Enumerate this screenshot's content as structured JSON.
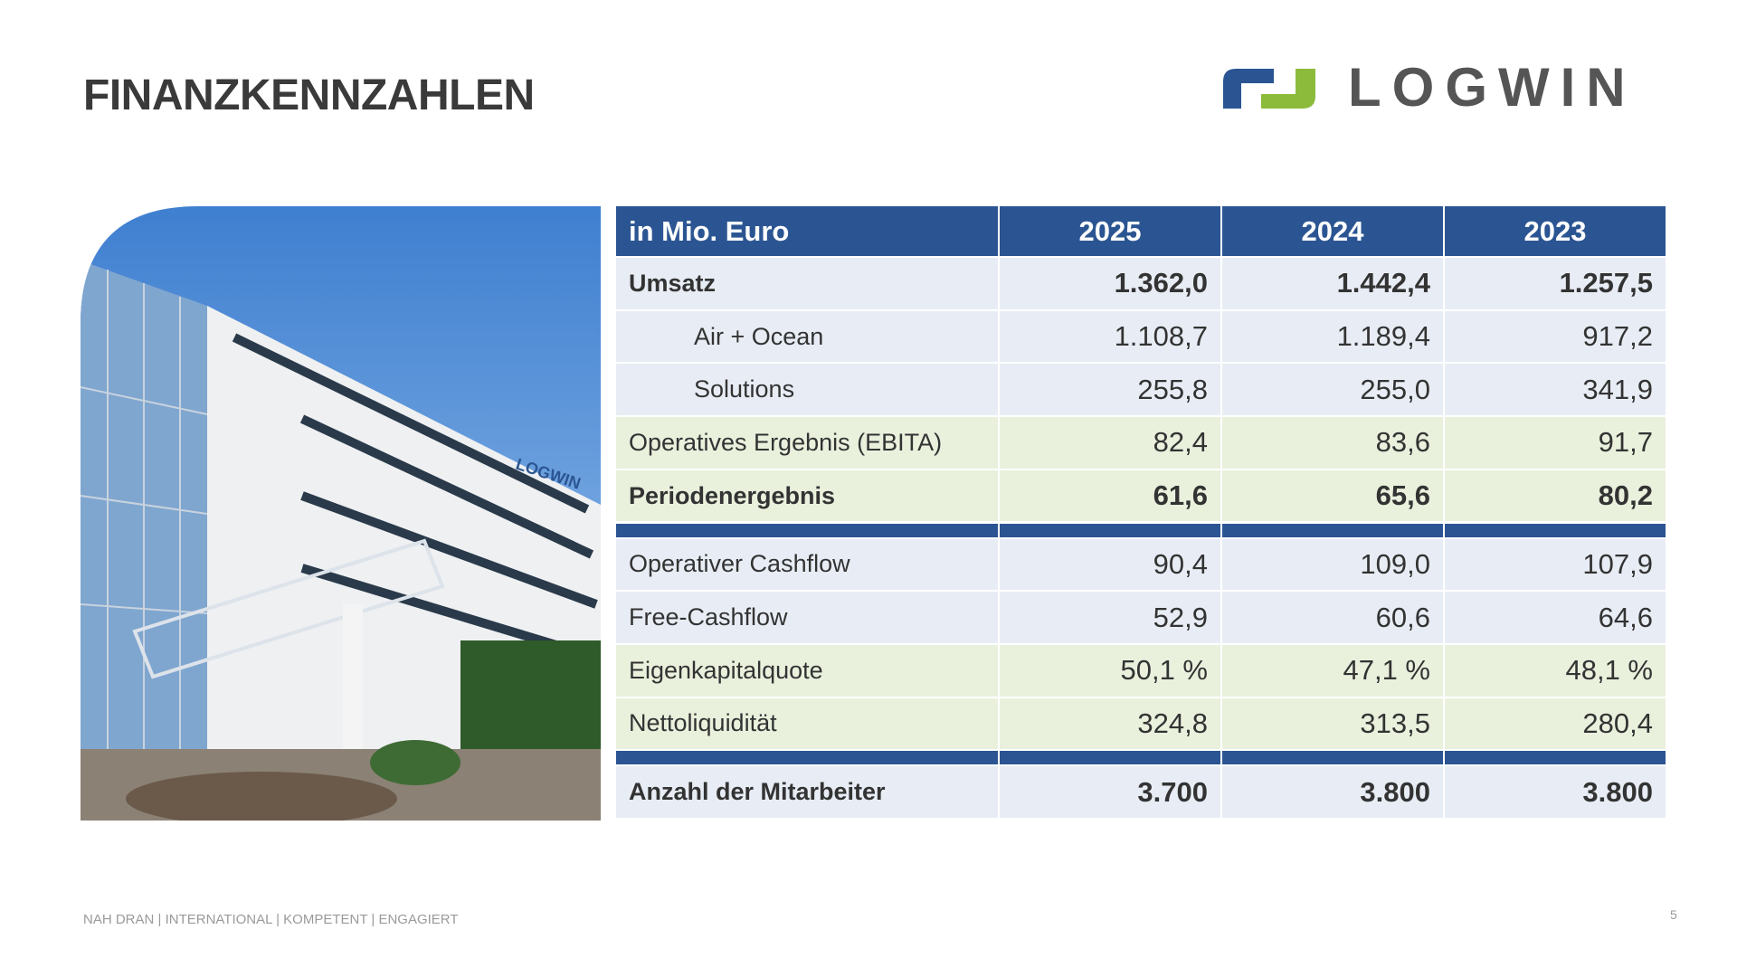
{
  "header": {
    "title": "FINANZKENNZAHLEN",
    "logo": "LOGWIN"
  },
  "table": {
    "columns": [
      "in Mio. Euro",
      "2025",
      "2024",
      "2023"
    ],
    "groups": [
      {
        "rows": [
          {
            "label": "Umsatz",
            "values": [
              "1.362,0",
              "1.442,4",
              "1.257,5"
            ],
            "bold": true,
            "shade": "blue"
          },
          {
            "label": "Air + Ocean",
            "values": [
              "1.108,7",
              "1.189,4",
              "917,2"
            ],
            "indent": true,
            "shade": "blue"
          },
          {
            "label": "Solutions",
            "values": [
              "255,8",
              "255,0",
              "341,9"
            ],
            "indent": true,
            "shade": "blue"
          },
          {
            "label": "Operatives Ergebnis (EBITA)",
            "values": [
              "82,4",
              "83,6",
              "91,7"
            ],
            "shade": "green"
          },
          {
            "label": "Periodenergebnis",
            "values": [
              "61,6",
              "65,6",
              "80,2"
            ],
            "bold": true,
            "shade": "green"
          }
        ]
      },
      {
        "rows": [
          {
            "label": "Operativer Cashflow",
            "values": [
              "90,4",
              "109,0",
              "107,9"
            ],
            "shade": "blue"
          },
          {
            "label": "Free-Cashflow",
            "values": [
              "52,9",
              "60,6",
              "64,6"
            ],
            "shade": "blue"
          },
          {
            "label": "Eigenkapitalquote",
            "values": [
              "50,1 %",
              "47,1 %",
              "48,1 %"
            ],
            "shade": "green"
          },
          {
            "label": "Nettoliquidität",
            "values": [
              "324,8",
              "313,5",
              "280,4"
            ],
            "shade": "green"
          }
        ]
      },
      {
        "rows": [
          {
            "label": "Anzahl der Mitarbeiter",
            "values": [
              "3.700",
              "3.800",
              "3.800"
            ],
            "bold": true,
            "shade": "blue"
          }
        ]
      }
    ]
  },
  "footer": {
    "tagline": "NAH DRAN | INTERNATIONAL | KOMPETENT | ENGAGIERT",
    "page": 5
  }
}
